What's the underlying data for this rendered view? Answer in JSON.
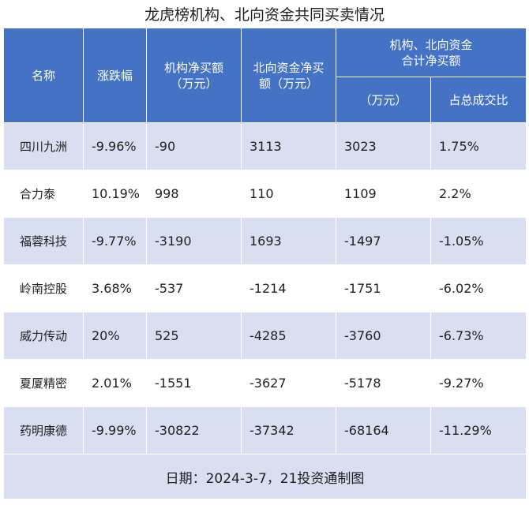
{
  "title": "龙虎榜机构、北向资金共同买卖情况",
  "headers": {
    "name": "名称",
    "change": "涨跌幅",
    "inst_1": "机构净买额",
    "inst_2": "（万元）",
    "north_1": "北向资金净买",
    "north_2": "额（万元）",
    "combined_1": "机构、北向资金",
    "combined_2": "合计净买额",
    "combined_unit": "（万元）",
    "ratio": "占总成交比"
  },
  "rows": [
    {
      "name": "四川九洲",
      "change": "-9.96%",
      "inst": "-90",
      "north": "3113",
      "total": "3023",
      "ratio": "1.75%"
    },
    {
      "name": "合力泰",
      "change": "10.19%",
      "inst": "998",
      "north": "110",
      "total": "1109",
      "ratio": "2.2%"
    },
    {
      "name": "福蓉科技",
      "change": "-9.77%",
      "inst": "-3190",
      "north": "1693",
      "total": "-1497",
      "ratio": "-1.05%"
    },
    {
      "name": "岭南控股",
      "change": "3.68%",
      "inst": "-537",
      "north": "-1214",
      "total": "-1751",
      "ratio": "-6.02%"
    },
    {
      "name": "威力传动",
      "change": "20%",
      "inst": "525",
      "north": "-4285",
      "total": "-3760",
      "ratio": "-6.73%"
    },
    {
      "name": "夏厦精密",
      "change": "2.01%",
      "inst": "-1551",
      "north": "-3627",
      "total": "-5178",
      "ratio": "-9.27%"
    },
    {
      "name": "药明康德",
      "change": "-9.99%",
      "inst": "-30822",
      "north": "-37342",
      "total": "-68164",
      "ratio": "-11.29%"
    }
  ],
  "footer": "日期：2024-3-7，21投资通制图"
}
